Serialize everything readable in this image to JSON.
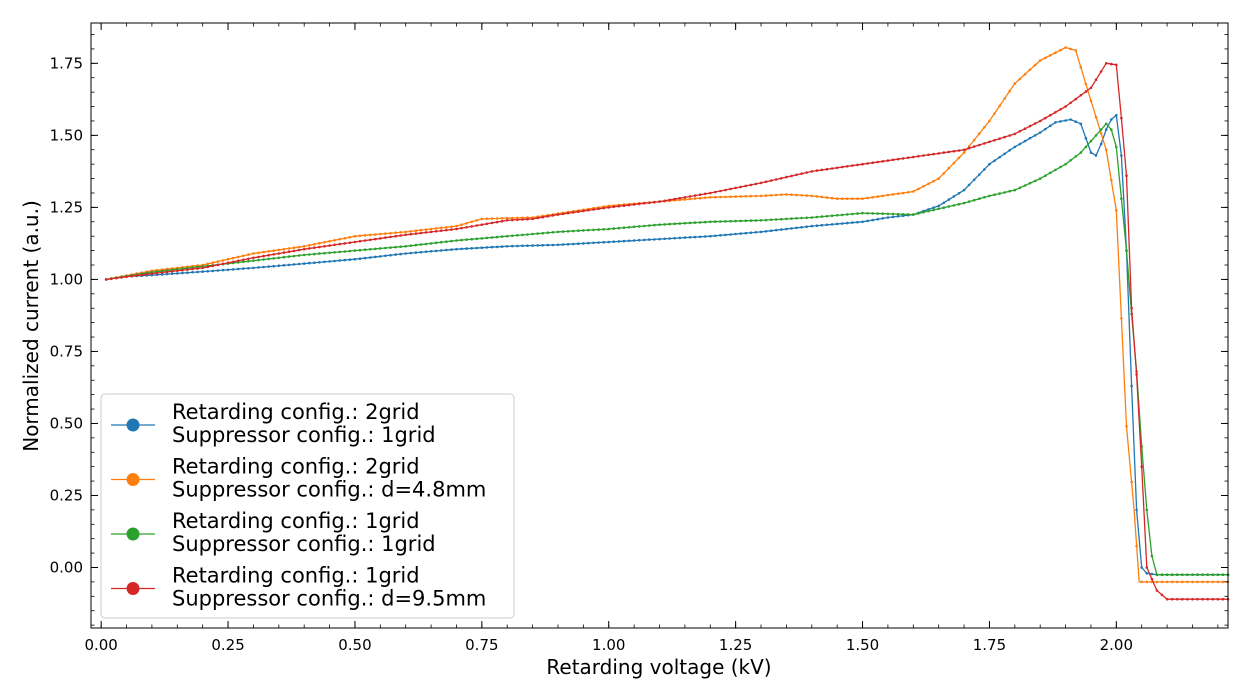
{
  "chart_data": {
    "type": "line",
    "title": "",
    "xlabel": "Retarding voltage (kV)",
    "ylabel": "Normalized current (a.u.)",
    "xlim": [
      -0.02,
      2.22
    ],
    "ylim": [
      -0.21,
      1.89
    ],
    "x_ticks": [
      "0.00",
      "0.25",
      "0.50",
      "0.75",
      "1.00",
      "1.25",
      "1.50",
      "1.75",
      "2.00"
    ],
    "y_ticks": [
      "0.00",
      "0.25",
      "0.50",
      "0.75",
      "1.00",
      "1.25",
      "1.50",
      "1.75"
    ],
    "grid": false,
    "legend_position": "lower-left",
    "series": [
      {
        "name_line1": "Retarding config.: 2grid",
        "name_line2": "Suppressor config.: 1grid",
        "color": "#1f77b4",
        "points": [
          [
            0.01,
            1.0
          ],
          [
            0.05,
            1.01
          ],
          [
            0.1,
            1.015
          ],
          [
            0.2,
            1.027
          ],
          [
            0.3,
            1.04
          ],
          [
            0.4,
            1.055
          ],
          [
            0.5,
            1.07
          ],
          [
            0.6,
            1.09
          ],
          [
            0.7,
            1.105
          ],
          [
            0.8,
            1.115
          ],
          [
            0.9,
            1.12
          ],
          [
            1.0,
            1.13
          ],
          [
            1.1,
            1.14
          ],
          [
            1.2,
            1.15
          ],
          [
            1.3,
            1.165
          ],
          [
            1.4,
            1.185
          ],
          [
            1.5,
            1.2
          ],
          [
            1.55,
            1.215
          ],
          [
            1.6,
            1.225
          ],
          [
            1.65,
            1.255
          ],
          [
            1.7,
            1.31
          ],
          [
            1.75,
            1.4
          ],
          [
            1.8,
            1.46
          ],
          [
            1.85,
            1.51
          ],
          [
            1.88,
            1.545
          ],
          [
            1.91,
            1.555
          ],
          [
            1.93,
            1.54
          ],
          [
            1.95,
            1.44
          ],
          [
            1.96,
            1.43
          ],
          [
            1.97,
            1.47
          ],
          [
            1.98,
            1.52
          ],
          [
            1.99,
            1.555
          ],
          [
            2.0,
            1.57
          ],
          [
            2.01,
            1.43
          ],
          [
            2.02,
            1.1
          ],
          [
            2.03,
            0.63
          ],
          [
            2.04,
            0.2
          ],
          [
            2.05,
            0.0
          ],
          [
            2.06,
            -0.02
          ],
          [
            2.08,
            -0.025
          ],
          [
            2.1,
            -0.025
          ],
          [
            2.22,
            -0.025
          ]
        ]
      },
      {
        "name_line1": "Retarding config.: 2grid",
        "name_line2": "Suppressor config.: d=4.8mm",
        "color": "#ff7f0e",
        "points": [
          [
            0.01,
            1.0
          ],
          [
            0.1,
            1.03
          ],
          [
            0.2,
            1.05
          ],
          [
            0.3,
            1.09
          ],
          [
            0.4,
            1.115
          ],
          [
            0.5,
            1.15
          ],
          [
            0.6,
            1.165
          ],
          [
            0.7,
            1.185
          ],
          [
            0.75,
            1.21
          ],
          [
            0.85,
            1.215
          ],
          [
            1.0,
            1.255
          ],
          [
            1.1,
            1.27
          ],
          [
            1.2,
            1.285
          ],
          [
            1.3,
            1.29
          ],
          [
            1.35,
            1.295
          ],
          [
            1.4,
            1.29
          ],
          [
            1.45,
            1.28
          ],
          [
            1.5,
            1.28
          ],
          [
            1.6,
            1.305
          ],
          [
            1.65,
            1.35
          ],
          [
            1.7,
            1.44
          ],
          [
            1.75,
            1.55
          ],
          [
            1.8,
            1.68
          ],
          [
            1.85,
            1.76
          ],
          [
            1.9,
            1.805
          ],
          [
            1.92,
            1.795
          ],
          [
            1.95,
            1.62
          ],
          [
            1.98,
            1.45
          ],
          [
            2.0,
            1.24
          ],
          [
            2.02,
            0.49
          ],
          [
            2.035,
            0.2
          ],
          [
            2.045,
            -0.05
          ],
          [
            2.1,
            -0.05
          ],
          [
            2.22,
            -0.05
          ]
        ]
      },
      {
        "name_line1": "Retarding config.: 1grid",
        "name_line2": "Suppressor config.: 1grid",
        "color": "#2ca02c",
        "points": [
          [
            0.01,
            1.0
          ],
          [
            0.1,
            1.025
          ],
          [
            0.2,
            1.045
          ],
          [
            0.3,
            1.065
          ],
          [
            0.4,
            1.085
          ],
          [
            0.5,
            1.1
          ],
          [
            0.6,
            1.115
          ],
          [
            0.7,
            1.135
          ],
          [
            0.8,
            1.15
          ],
          [
            0.9,
            1.165
          ],
          [
            1.0,
            1.175
          ],
          [
            1.1,
            1.19
          ],
          [
            1.2,
            1.2
          ],
          [
            1.3,
            1.205
          ],
          [
            1.4,
            1.215
          ],
          [
            1.5,
            1.23
          ],
          [
            1.6,
            1.225
          ],
          [
            1.65,
            1.245
          ],
          [
            1.7,
            1.265
          ],
          [
            1.75,
            1.29
          ],
          [
            1.8,
            1.31
          ],
          [
            1.85,
            1.35
          ],
          [
            1.9,
            1.4
          ],
          [
            1.93,
            1.44
          ],
          [
            1.96,
            1.5
          ],
          [
            1.98,
            1.54
          ],
          [
            1.99,
            1.52
          ],
          [
            2.0,
            1.46
          ],
          [
            2.01,
            1.28
          ],
          [
            2.02,
            1.1
          ],
          [
            2.03,
            0.88
          ],
          [
            2.04,
            0.68
          ],
          [
            2.05,
            0.42
          ],
          [
            2.06,
            0.2
          ],
          [
            2.07,
            0.04
          ],
          [
            2.08,
            -0.025
          ],
          [
            2.22,
            -0.025
          ]
        ]
      },
      {
        "name_line1": "Retarding config.: 1grid",
        "name_line2": "Suppressor config.: d=9.5mm",
        "color": "#d62728",
        "points": [
          [
            0.01,
            1.0
          ],
          [
            0.1,
            1.02
          ],
          [
            0.2,
            1.04
          ],
          [
            0.3,
            1.075
          ],
          [
            0.4,
            1.105
          ],
          [
            0.5,
            1.13
          ],
          [
            0.6,
            1.155
          ],
          [
            0.7,
            1.175
          ],
          [
            0.8,
            1.205
          ],
          [
            0.85,
            1.21
          ],
          [
            0.9,
            1.225
          ],
          [
            1.0,
            1.25
          ],
          [
            1.1,
            1.27
          ],
          [
            1.2,
            1.3
          ],
          [
            1.3,
            1.335
          ],
          [
            1.4,
            1.375
          ],
          [
            1.5,
            1.4
          ],
          [
            1.6,
            1.425
          ],
          [
            1.7,
            1.45
          ],
          [
            1.8,
            1.505
          ],
          [
            1.85,
            1.55
          ],
          [
            1.9,
            1.6
          ],
          [
            1.95,
            1.665
          ],
          [
            1.98,
            1.75
          ],
          [
            2.0,
            1.745
          ],
          [
            2.01,
            1.56
          ],
          [
            2.02,
            1.36
          ],
          [
            2.03,
            0.9
          ],
          [
            2.04,
            0.67
          ],
          [
            2.05,
            0.35
          ],
          [
            2.06,
            0.0
          ],
          [
            2.08,
            -0.08
          ],
          [
            2.1,
            -0.11
          ],
          [
            2.22,
            -0.11
          ]
        ]
      }
    ]
  }
}
